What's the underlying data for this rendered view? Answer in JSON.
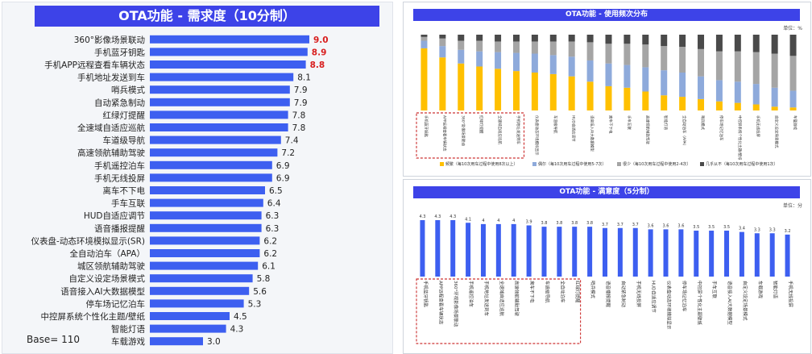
{
  "left_chart": {
    "title": "OTA功能 - 需求度（10分制）",
    "base_label": "Base= 110",
    "chart_data": {
      "type": "bar",
      "orientation": "horizontal",
      "title": "OTA功能 - 需求度（10分制）",
      "categories": [
        "360°影像场景联动",
        "手机蓝牙钥匙",
        "手机APP远程查看车辆状态",
        "手机地址发送到车",
        "哨兵模式",
        "自动紧急制动",
        "红绿灯提醒",
        "全速域自适应巡航",
        "车道级导航",
        "高速领航辅助驾驶",
        "手机遥控泊车",
        "手机无线投屏",
        "离车不下电",
        "手车互联",
        "HUD自适应调节",
        "语音播报提醒",
        "仪表盘-动态环境模拟显示(SR)",
        "全自动泊车（APA）",
        "城区领航辅助驾驶",
        "自定义设定场景模式",
        "语音接入AI大数据模型",
        "停车场记忆泊车",
        "中控屏系统个性化主题/壁纸",
        "智能灯语",
        "车载游戏"
      ],
      "values": [
        9.0,
        8.9,
        8.8,
        8.1,
        7.9,
        7.9,
        7.8,
        7.8,
        7.4,
        7.2,
        6.9,
        6.9,
        6.5,
        6.4,
        6.3,
        6.3,
        6.2,
        6.2,
        6.1,
        5.8,
        5.6,
        5.3,
        4.5,
        4.3,
        3.0
      ],
      "value_labels": [
        "9.0",
        "8.9",
        "8.8",
        "8.1",
        "7.9",
        "7.9",
        "7.8",
        "7.8",
        "7.4",
        "7.2",
        "6.9",
        "6.9",
        "6.5",
        "6.4",
        "6.3",
        "6.3",
        "6.2",
        "6.2",
        "6.1",
        "5.8",
        "5.6",
        "5.3",
        "4.5",
        "4.3",
        "3.0"
      ],
      "highlight_top_n": 3,
      "xlim": [
        0,
        10
      ],
      "colors": {
        "bar": "#3d5ff0",
        "highlight_label": "#d81e1e"
      }
    }
  },
  "right_top_chart": {
    "title": "OTA功能 - 使用频次分布",
    "unit": "单位：%",
    "chart_data": {
      "type": "bar",
      "stacked": true,
      "title": "OTA功能 - 使用频次分布",
      "ylim": [
        0,
        100
      ],
      "categories": [
        "手机蓝牙钥匙",
        "APP远程查看车辆状态",
        "360°影像场景联动",
        "红绿灯提醒",
        "全速域自适应巡航",
        "手机地址发送到车",
        "仪表盘动态环境模拟显示",
        "车道级导航",
        "HUD自适应调节",
        "语音接入AI大数据模型",
        "离车不下电",
        "手车互联",
        "高速领航辅助驾驶",
        "智能灯语",
        "全自动泊车（APA）",
        "哨兵模式",
        "停车场记忆泊车",
        "中控屏系统个性化主题/壁纸",
        "手机无线投屏",
        "自定义设定场景模式",
        "车载游戏"
      ],
      "series": [
        {
          "name": "频繁（每10次用车过程中使用8次以上）",
          "values": [
            82,
            70,
            62,
            58,
            55,
            52,
            50,
            48,
            45,
            38,
            32,
            30,
            25,
            20,
            18,
            15,
            12,
            10,
            8,
            5,
            4
          ]
        },
        {
          "name": "偶尔（每10次用车过程中使用5-7次）",
          "values": [
            10,
            15,
            18,
            20,
            22,
            24,
            25,
            25,
            26,
            28,
            30,
            30,
            32,
            33,
            32,
            30,
            28,
            28,
            27,
            25,
            22
          ]
        },
        {
          "name": "很少（每10次用车过程中使用2-4次）",
          "values": [
            5,
            10,
            12,
            14,
            14,
            15,
            16,
            18,
            20,
            24,
            26,
            28,
            30,
            32,
            34,
            36,
            38,
            40,
            42,
            45,
            46
          ]
        },
        {
          "name": "几乎从不（每10次用车过程中使用1次）",
          "values": [
            3,
            5,
            8,
            8,
            9,
            9,
            9,
            9,
            9,
            10,
            12,
            12,
            13,
            15,
            16,
            19,
            22,
            22,
            23,
            25,
            28
          ]
        }
      ],
      "colors": [
        "#ffc000",
        "#8eaadb",
        "#a5a5a5",
        "#4a4a4a"
      ],
      "highlight_box": "first 6 categories"
    }
  },
  "right_bottom_chart": {
    "title": "OTA功能 - 满意度（5分制）",
    "unit": "单位：分",
    "chart_data": {
      "type": "bar",
      "title": "OTA功能 - 满意度（5分制）",
      "ylim": [
        0,
        5
      ],
      "categories": [
        "手机蓝牙钥匙",
        "APP远程查看车辆状态",
        "360°环视影像场景联动",
        "手机遥控泊车",
        "手机地址发送到车",
        "全速域自适应巡航",
        "高速领航辅助驾驶",
        "离车不下电",
        "车道级导航",
        "全自动泊车",
        "红绿灯提醒",
        "哨兵模式",
        "语音播报提醒",
        "自动紧急制动",
        "手机无线投屏",
        "HUD自适应调节",
        "仪表盘动态环境模拟显示",
        "停车场记忆泊车",
        "中控屏个性化主题壁纸",
        "手车互联",
        "语音接入AI大数据模型",
        "自定义设定场景模式",
        "车载游戏",
        "智能灯语",
        "手机无线投屏"
      ],
      "values": [
        4.3,
        4.3,
        4.3,
        4.1,
        4.0,
        4.0,
        4.0,
        3.9,
        3.8,
        3.8,
        3.8,
        3.8,
        3.7,
        3.7,
        3.7,
        3.6,
        3.6,
        3.6,
        3.5,
        3.5,
        3.5,
        3.4,
        3.3,
        3.3,
        3.2
      ],
      "value_labels": [
        "4.3",
        "4.3",
        "4.3",
        "4.1",
        "4",
        "4",
        "4",
        "3.9",
        "3.8",
        "3.8",
        "3.8",
        "3.8",
        "3.7",
        "3.7",
        "3.7",
        "3.6",
        "3.6",
        "3.6",
        "3.5",
        "3.5",
        "3.5",
        "3.4",
        "3.3",
        "3.3",
        "3.2"
      ],
      "colors": {
        "bar": "#3d5ff0"
      },
      "highlight_box": "first 11 categories"
    }
  }
}
